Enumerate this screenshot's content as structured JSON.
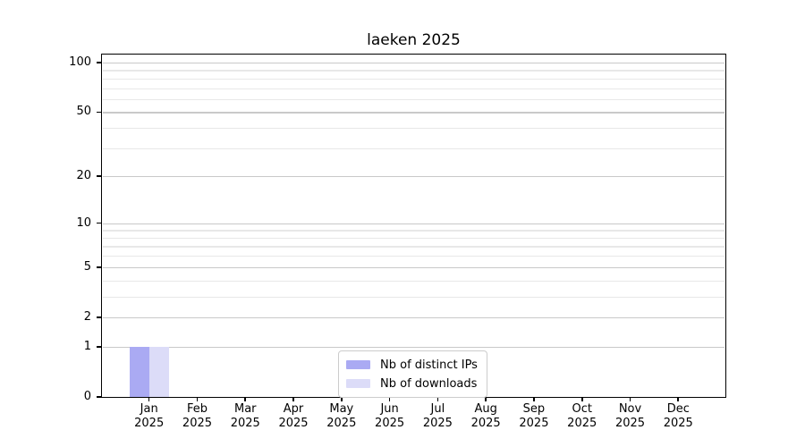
{
  "title": "laeken 2025",
  "chart_data": {
    "type": "bar",
    "title": "laeken 2025",
    "yscale": "log1p",
    "categories": [
      "Jan 2025",
      "Feb 2025",
      "Mar 2025",
      "Apr 2025",
      "May 2025",
      "Jun 2025",
      "Jul 2025",
      "Aug 2025",
      "Sep 2025",
      "Oct 2025",
      "Nov 2025",
      "Dec 2025"
    ],
    "series": [
      {
        "name": "Nb of distinct IPs",
        "color": "#aaaaf3",
        "values": [
          1,
          0,
          0,
          0,
          0,
          0,
          0,
          0,
          0,
          0,
          0,
          0
        ]
      },
      {
        "name": "Nb of downloads",
        "color": "#dcdcf8",
        "values": [
          1,
          0,
          0,
          0,
          0,
          0,
          0,
          0,
          0,
          0,
          0,
          0
        ]
      }
    ],
    "y_axis": {
      "major_ticks": [
        0,
        1,
        2,
        5,
        10,
        20,
        50,
        100
      ],
      "minor_gridlines": [
        3,
        4,
        6,
        7,
        8,
        9,
        30,
        40,
        60,
        70,
        80,
        90
      ],
      "range": [
        0,
        112
      ]
    },
    "grid": {
      "major_color": "#c9c9c9",
      "minor_color": "#e8e8e8"
    },
    "legend": {
      "position": "lower center"
    },
    "axis_color": "#000000",
    "background": "#ffffff"
  }
}
